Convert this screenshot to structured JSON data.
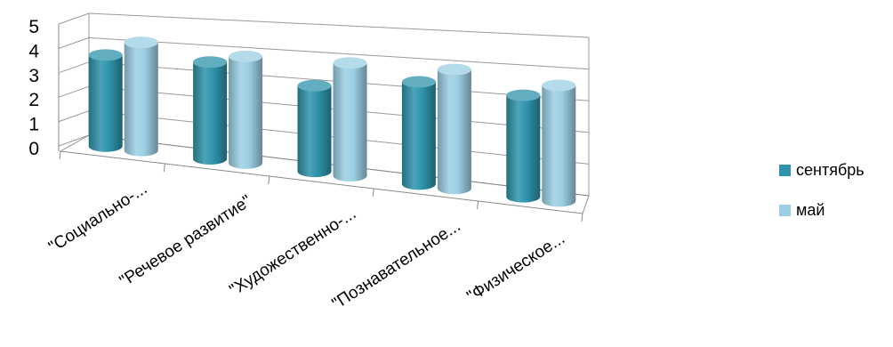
{
  "chart_data": {
    "type": "bar",
    "style": "3d-cylinder",
    "categories": [
      "\"Социально-...",
      "\"Речевое развитие\"",
      "\"Художественно-...",
      "\"Познавательное...",
      "\"Физическое..."
    ],
    "series": [
      {
        "name": "сентябрь",
        "color": "#2e93ab",
        "values": [
          3.7,
          3.7,
          3.1,
          3.5,
          3.3
        ]
      },
      {
        "name": "май",
        "color": "#9bcfe3",
        "values": [
          4.3,
          4.0,
          4.0,
          4.0,
          3.7
        ]
      }
    ],
    "ylim": [
      0,
      5
    ],
    "yticks": [
      0,
      1,
      2,
      3,
      4,
      5
    ],
    "grid": true,
    "legend": "right",
    "title": "",
    "xlabel": "",
    "ylabel": ""
  }
}
